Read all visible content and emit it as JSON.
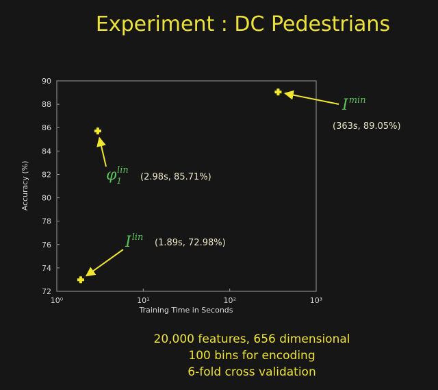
{
  "chart_data": {
    "type": "scatter",
    "title": "Experiment : DC Pedestrians",
    "xlabel": "Training Time in Seconds",
    "ylabel": "Accuracy (%)",
    "x": [
      1.89,
      2.98,
      363
    ],
    "values": [
      72.98,
      85.71,
      89.05
    ],
    "color": "#f2e830",
    "xscale": "log",
    "xlim": [
      1,
      1000
    ],
    "xticks": [
      {
        "value": 1,
        "label": "10⁰"
      },
      {
        "value": 10,
        "label": "10¹"
      },
      {
        "value": 100,
        "label": "10²"
      },
      {
        "value": 1000,
        "label": "10³"
      }
    ],
    "ylim": [
      72,
      90
    ],
    "yticks": [
      72,
      74,
      76,
      78,
      80,
      82,
      84,
      86,
      88,
      90
    ],
    "annotations": [
      {
        "symbol": "I",
        "sup": "lin",
        "text": "(1.89s, 72.98%)"
      },
      {
        "symbol": "φ",
        "sub": "1",
        "sup": "lin",
        "text": "(2.98s, 85.71%)"
      },
      {
        "symbol": "I",
        "sup": "min",
        "text": "(363s, 89.05%)"
      }
    ],
    "notes": [
      "20,000 features, 656 dimensional",
      "100 bins for encoding",
      "6-fold cross validation"
    ]
  }
}
